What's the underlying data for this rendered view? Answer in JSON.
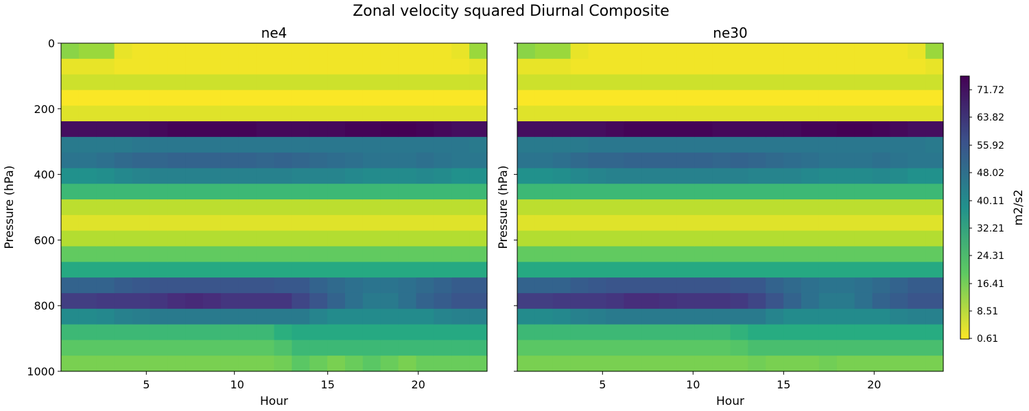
{
  "chart_data": {
    "type": "heatmap",
    "title": "Zonal velocity squared Diurnal Composite",
    "colormap": "viridis_r",
    "colorbar": {
      "label": "m2/s2",
      "range": [
        0.61,
        75.67
      ],
      "ticks": [
        "0.61",
        "8.51",
        "16.41",
        "24.31",
        "32.21",
        "40.11",
        "48.02",
        "55.92",
        "63.82",
        "71.72"
      ]
    },
    "x": [
      0.5,
      1.5,
      2.5,
      3.5,
      4.5,
      5.5,
      6.5,
      7.5,
      8.5,
      9.5,
      10.5,
      11.5,
      12.5,
      13.5,
      14.5,
      15.5,
      16.5,
      17.5,
      18.5,
      19.5,
      20.5,
      21.5,
      22.5,
      23.5
    ],
    "y": [
      0,
      50,
      100,
      150,
      200,
      250,
      300,
      350,
      400,
      450,
      500,
      550,
      600,
      650,
      700,
      750,
      800,
      850,
      900,
      950,
      1000
    ],
    "panels": [
      {
        "title": "ne4",
        "xlabel": "Hour",
        "ylabel": "Pressure (hPa)",
        "xlim": [
          0.5,
          23.5
        ],
        "ylim": [
          1000,
          0
        ],
        "xticks": [
          "5",
          "10",
          "15",
          "20"
        ],
        "yticks": [
          "0",
          "200",
          "400",
          "600",
          "800",
          "1000"
        ],
        "values": [
          [
            14,
            3,
            6,
            1,
            4,
            73,
            45,
            47,
            38,
            25,
            8,
            4,
            9,
            19,
            30,
            52,
            62,
            40,
            25,
            20,
            16
          ],
          [
            12,
            3,
            6,
            1,
            4,
            73,
            45,
            47,
            38,
            25,
            8,
            4,
            9,
            19,
            30,
            52,
            62,
            40,
            25,
            20,
            16
          ],
          [
            12,
            3,
            6,
            1,
            4,
            73,
            45,
            48,
            39,
            25,
            8,
            4,
            9,
            19,
            30,
            52,
            63,
            41,
            25,
            20,
            16
          ],
          [
            3,
            2,
            6,
            1,
            4,
            73,
            45,
            50,
            41,
            25,
            8,
            4,
            9,
            19,
            30,
            54,
            63,
            43,
            25,
            20,
            16
          ],
          [
            2,
            2,
            6,
            1,
            4,
            73,
            46,
            51,
            42,
            25,
            8,
            4,
            9,
            19,
            30,
            55,
            63,
            44,
            25,
            20,
            16
          ],
          [
            2,
            2,
            6,
            1,
            4,
            74,
            46,
            51,
            43,
            25,
            8,
            4,
            9,
            19,
            30,
            56,
            64,
            45,
            25,
            20,
            16
          ],
          [
            2,
            2,
            6,
            1,
            4,
            75,
            46,
            52,
            43,
            25,
            8,
            4,
            9,
            19,
            30,
            56,
            66,
            45,
            25,
            20,
            16
          ],
          [
            2,
            2,
            6,
            1,
            4,
            75,
            46,
            52,
            43,
            25,
            8,
            4,
            9,
            19,
            30,
            56,
            67,
            45,
            25,
            20,
            16
          ],
          [
            2,
            2,
            6,
            1,
            4,
            75,
            46,
            52,
            43,
            25,
            8,
            4,
            9,
            19,
            30,
            56,
            66,
            45,
            25,
            20,
            16
          ],
          [
            2,
            2,
            6,
            1,
            4,
            75,
            46,
            52,
            43,
            25,
            8,
            4,
            9,
            19,
            30,
            56,
            64,
            45,
            25,
            20,
            16
          ],
          [
            2,
            2,
            6,
            1,
            4,
            75,
            46,
            52,
            43,
            25,
            8,
            4,
            9,
            19,
            30,
            56,
            64,
            45,
            25,
            20,
            16
          ],
          [
            2,
            2,
            6,
            1,
            4,
            74,
            46,
            51,
            43,
            25,
            8,
            4,
            9,
            19,
            30,
            56,
            64,
            45,
            25,
            20,
            16
          ],
          [
            2,
            2,
            6,
            1,
            4,
            74,
            46,
            52,
            43,
            25,
            8,
            4,
            9,
            19,
            30,
            55,
            64,
            45,
            28,
            22,
            17
          ],
          [
            2,
            2,
            6,
            1,
            4,
            74,
            46,
            51,
            42,
            25,
            8,
            4,
            9,
            19,
            30,
            55,
            60,
            45,
            30,
            25,
            20
          ],
          [
            2,
            2,
            6,
            1,
            4,
            74,
            46,
            50,
            42,
            25,
            8,
            4,
            9,
            19,
            30,
            52,
            56,
            42,
            30,
            25,
            18
          ],
          [
            2,
            2,
            6,
            1,
            4,
            74,
            46,
            49,
            42,
            25,
            8,
            4,
            9,
            19,
            30,
            50,
            52,
            40,
            30,
            25,
            16
          ],
          [
            2,
            2,
            6,
            1,
            4,
            75,
            46,
            48,
            41,
            25,
            8,
            4,
            9,
            19,
            30,
            48,
            48,
            40,
            30,
            25,
            18
          ],
          [
            2,
            2,
            6,
            1,
            4,
            75,
            46,
            47,
            40,
            25,
            8,
            4,
            9,
            19,
            30,
            47,
            45,
            40,
            30,
            25,
            20
          ],
          [
            2,
            2,
            6,
            1,
            4,
            76,
            46,
            47,
            40,
            25,
            8,
            4,
            9,
            19,
            30,
            47,
            45,
            40,
            30,
            25,
            18
          ],
          [
            2,
            2,
            6,
            1,
            4,
            76,
            46,
            47,
            40,
            25,
            8,
            4,
            9,
            19,
            30,
            48,
            48,
            40,
            30,
            25,
            16
          ],
          [
            2,
            2,
            6,
            1,
            4,
            75,
            46,
            48,
            41,
            25,
            8,
            4,
            9,
            19,
            30,
            50,
            52,
            40,
            30,
            25,
            18
          ],
          [
            2,
            2,
            6,
            1,
            4,
            74,
            46,
            47,
            40,
            25,
            8,
            4,
            9,
            19,
            30,
            52,
            54,
            42,
            30,
            25,
            18
          ],
          [
            3,
            2,
            6,
            1,
            4,
            73,
            46,
            46,
            38,
            25,
            8,
            4,
            9,
            19,
            30,
            54,
            56,
            43,
            30,
            25,
            18
          ],
          [
            12,
            3,
            6,
            1,
            4,
            73,
            45,
            46,
            38,
            25,
            8,
            4,
            9,
            19,
            30,
            54,
            56,
            43,
            30,
            25,
            18
          ]
        ]
      },
      {
        "title": "ne30",
        "xlabel": "Hour",
        "ylabel": "Pressure (hPa)",
        "xlim": [
          0.5,
          23.5
        ],
        "ylim": [
          1000,
          0
        ],
        "xticks": [
          "5",
          "10",
          "15",
          "20"
        ],
        "yticks": [
          "",
          "",
          "",
          "",
          "",
          ""
        ],
        "values": [
          [
            14,
            3,
            6,
            1,
            4,
            73,
            45,
            47,
            38,
            25,
            8,
            4,
            9,
            19,
            30,
            52,
            62,
            40,
            25,
            20,
            16
          ],
          [
            12,
            3,
            6,
            1,
            4,
            73,
            45,
            47,
            38,
            25,
            8,
            4,
            9,
            19,
            30,
            52,
            62,
            40,
            25,
            20,
            16
          ],
          [
            12,
            3,
            6,
            1,
            4,
            73,
            45,
            48,
            39,
            25,
            8,
            4,
            9,
            19,
            30,
            52,
            63,
            41,
            25,
            20,
            16
          ],
          [
            3,
            2,
            6,
            1,
            4,
            73,
            45,
            50,
            41,
            25,
            8,
            4,
            9,
            19,
            30,
            54,
            63,
            43,
            25,
            20,
            16
          ],
          [
            2,
            2,
            6,
            1,
            4,
            73,
            46,
            51,
            42,
            25,
            8,
            4,
            9,
            19,
            30,
            55,
            63,
            44,
            25,
            20,
            16
          ],
          [
            2,
            2,
            6,
            1,
            4,
            74,
            46,
            51,
            43,
            25,
            8,
            4,
            9,
            19,
            30,
            56,
            64,
            45,
            25,
            20,
            16
          ],
          [
            2,
            2,
            6,
            1,
            4,
            75,
            46,
            52,
            43,
            25,
            8,
            4,
            9,
            19,
            30,
            56,
            66,
            45,
            25,
            20,
            16
          ],
          [
            2,
            2,
            6,
            1,
            4,
            75,
            46,
            52,
            43,
            25,
            8,
            4,
            9,
            19,
            30,
            56,
            66,
            45,
            25,
            20,
            16
          ],
          [
            2,
            2,
            6,
            1,
            4,
            75,
            46,
            52,
            43,
            25,
            8,
            4,
            9,
            19,
            30,
            56,
            65,
            45,
            25,
            20,
            16
          ],
          [
            2,
            2,
            6,
            1,
            4,
            75,
            46,
            52,
            43,
            25,
            8,
            4,
            9,
            19,
            30,
            56,
            64,
            45,
            25,
            20,
            16
          ],
          [
            2,
            2,
            6,
            1,
            4,
            75,
            46,
            52,
            43,
            25,
            8,
            4,
            9,
            19,
            30,
            56,
            64,
            45,
            25,
            20,
            16
          ],
          [
            2,
            2,
            6,
            1,
            4,
            74,
            46,
            51,
            43,
            25,
            8,
            4,
            9,
            19,
            30,
            56,
            64,
            45,
            25,
            20,
            16
          ],
          [
            2,
            2,
            6,
            1,
            4,
            74,
            46,
            52,
            43,
            25,
            8,
            4,
            9,
            19,
            30,
            55,
            63,
            45,
            27,
            21,
            16
          ],
          [
            2,
            2,
            6,
            1,
            4,
            74,
            46,
            51,
            42,
            25,
            8,
            4,
            9,
            19,
            30,
            55,
            60,
            45,
            29,
            23,
            17
          ],
          [
            2,
            2,
            6,
            1,
            4,
            74,
            46,
            50,
            42,
            25,
            8,
            4,
            9,
            19,
            30,
            52,
            56,
            42,
            29,
            23,
            16
          ],
          [
            2,
            2,
            6,
            1,
            4,
            74,
            46,
            49,
            42,
            25,
            8,
            4,
            9,
            19,
            30,
            50,
            52,
            40,
            29,
            23,
            16
          ],
          [
            2,
            2,
            6,
            1,
            4,
            75,
            46,
            48,
            41,
            25,
            8,
            4,
            9,
            19,
            30,
            48,
            48,
            40,
            29,
            23,
            16
          ],
          [
            2,
            2,
            6,
            1,
            4,
            75,
            46,
            47,
            40,
            25,
            8,
            4,
            9,
            19,
            30,
            47,
            45,
            40,
            29,
            23,
            17
          ],
          [
            2,
            2,
            6,
            1,
            4,
            76,
            46,
            47,
            40,
            25,
            8,
            4,
            9,
            19,
            30,
            47,
            45,
            40,
            29,
            23,
            16
          ],
          [
            2,
            2,
            6,
            1,
            4,
            76,
            46,
            47,
            40,
            25,
            8,
            4,
            9,
            19,
            30,
            48,
            48,
            40,
            29,
            23,
            16
          ],
          [
            2,
            2,
            6,
            1,
            4,
            75,
            46,
            48,
            41,
            25,
            8,
            4,
            9,
            19,
            30,
            50,
            52,
            40,
            29,
            23,
            16
          ],
          [
            2,
            2,
            6,
            1,
            4,
            74,
            46,
            47,
            40,
            25,
            8,
            4,
            9,
            19,
            30,
            52,
            54,
            42,
            29,
            23,
            16
          ],
          [
            3,
            2,
            6,
            1,
            4,
            73,
            46,
            46,
            38,
            25,
            8,
            4,
            9,
            19,
            30,
            54,
            56,
            43,
            29,
            23,
            16
          ],
          [
            12,
            3,
            6,
            1,
            4,
            73,
            45,
            46,
            38,
            25,
            8,
            4,
            9,
            19,
            30,
            54,
            56,
            43,
            29,
            23,
            16
          ]
        ]
      }
    ]
  }
}
